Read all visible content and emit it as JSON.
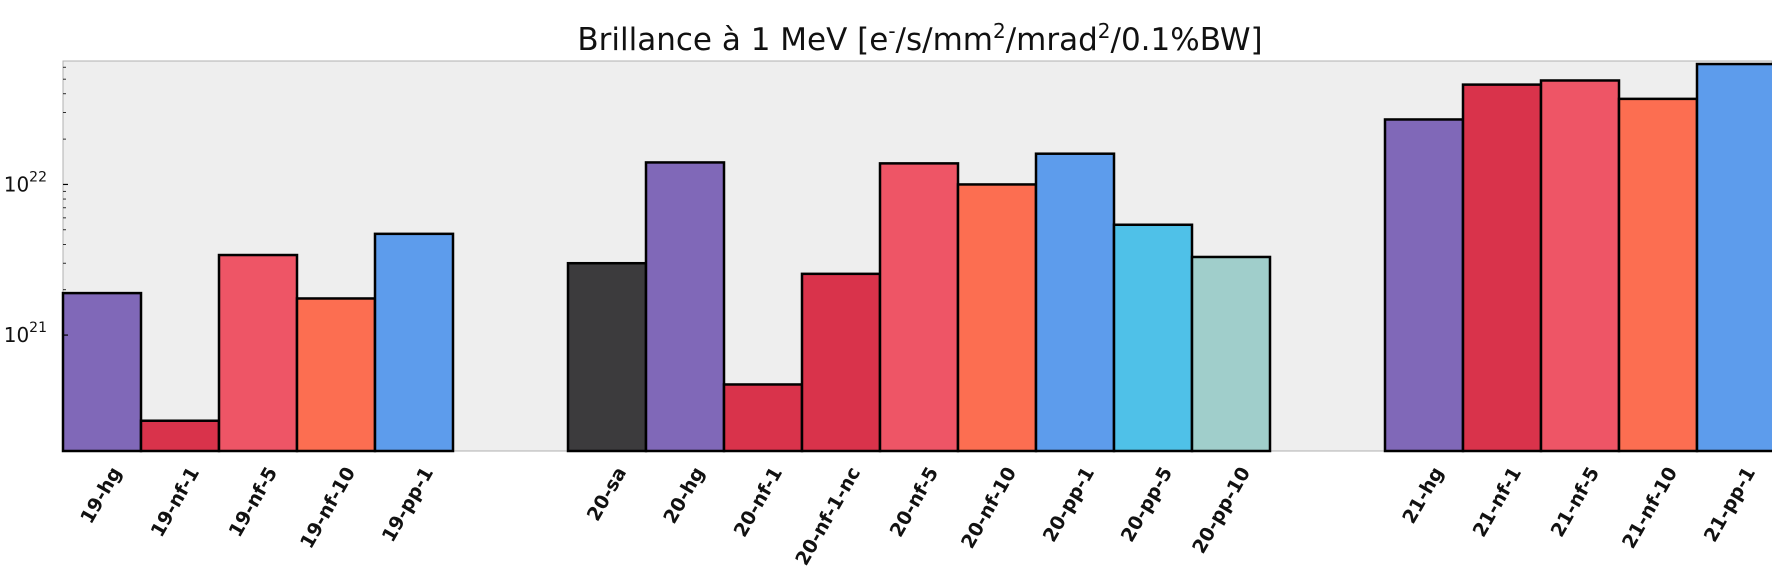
{
  "chart_data": {
    "type": "bar",
    "title": "Brillance à 1 MeV [e⁻/s/mm²/mrad²/0.1%BW]",
    "xlabel": "",
    "ylabel": "",
    "yscale": "log",
    "ylim": [
      1.7e+20,
      6.6e+22
    ],
    "grid": false,
    "yticks": [
      {
        "value": 1e+21,
        "base": "10",
        "exp": "21"
      },
      {
        "value": 1e+22,
        "base": "10",
        "exp": "22"
      }
    ],
    "groups": [
      {
        "bars": [
          {
            "category": "19-hg",
            "value": 1.9e+21,
            "color": "#8068b8"
          },
          {
            "category": "19-nf-1",
            "value": 2.7e+20,
            "color": "#d9334b"
          },
          {
            "category": "19-nf-5",
            "value": 3.4e+21,
            "color": "#ee5566"
          },
          {
            "category": "19-nf-10",
            "value": 1.75e+21,
            "color": "#fc6e51"
          },
          {
            "category": "19-pp-1",
            "value": 4.7e+21,
            "color": "#5d9cec"
          }
        ]
      },
      {
        "bars": [
          {
            "category": "20-sa",
            "value": 3e+21,
            "color": "#3c3b3d"
          },
          {
            "category": "20-hg",
            "value": 1.4e+22,
            "color": "#8068b8"
          },
          {
            "category": "20-nf-1",
            "value": 4.7e+20,
            "color": "#d9334b"
          },
          {
            "category": "20-nf-1-nc",
            "value": 2.55e+21,
            "color": "#d9334b"
          },
          {
            "category": "20-nf-5",
            "value": 1.38e+22,
            "color": "#ee5566"
          },
          {
            "category": "20-nf-10",
            "value": 1e+22,
            "color": "#fc6e51"
          },
          {
            "category": "20-pp-1",
            "value": 1.6e+22,
            "color": "#5d9cec"
          },
          {
            "category": "20-pp-5",
            "value": 5.4e+21,
            "color": "#4fc1e8"
          },
          {
            "category": "20-pp-10",
            "value": 3.3e+21,
            "color": "#a0cecb"
          }
        ]
      },
      {
        "bars": [
          {
            "category": "21-hg",
            "value": 2.7e+22,
            "color": "#8068b8"
          },
          {
            "category": "21-nf-1",
            "value": 4.6e+22,
            "color": "#d9334b"
          },
          {
            "category": "21-nf-5",
            "value": 4.9e+22,
            "color": "#ee5566"
          },
          {
            "category": "21-nf-10",
            "value": 3.7e+22,
            "color": "#fc6e51"
          },
          {
            "category": "21-pp-1",
            "value": 6.3e+22,
            "color": "#5d9cec"
          }
        ]
      }
    ],
    "colors": {
      "plot_background": "#eeeeee",
      "bar_edge": "#000000"
    }
  }
}
